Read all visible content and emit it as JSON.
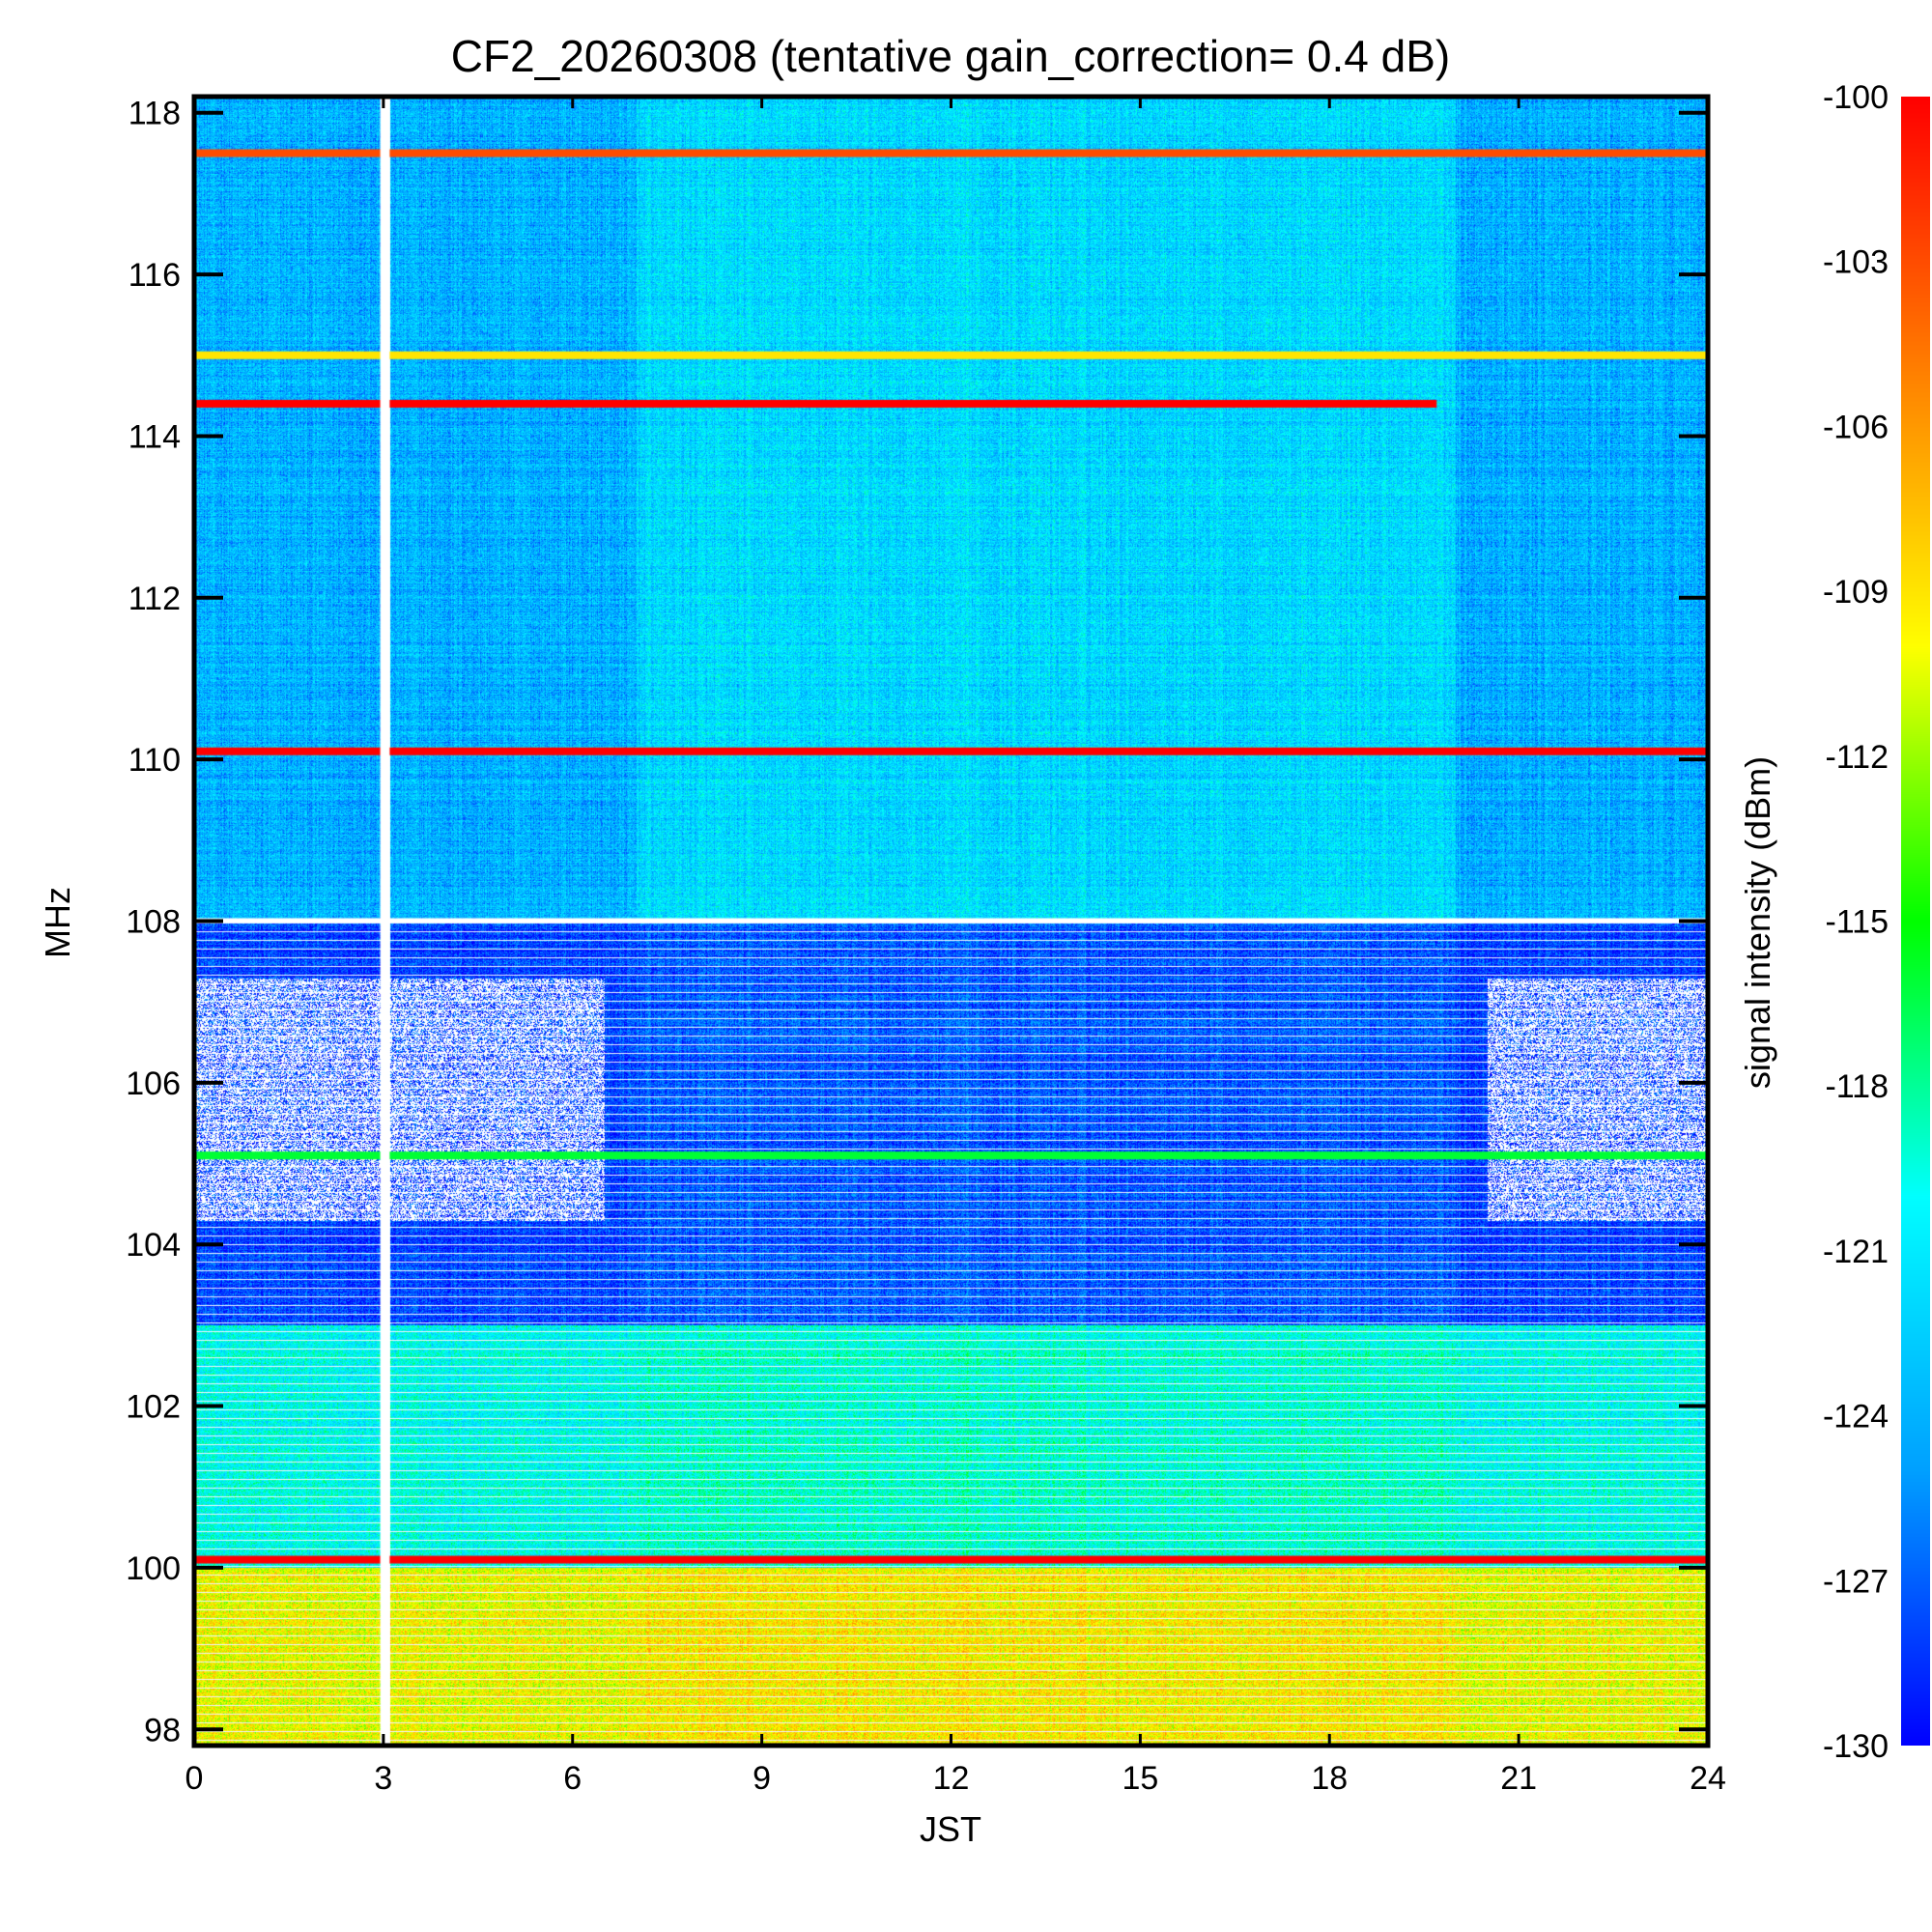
{
  "chart_data": {
    "type": "heatmap",
    "title": "CF2_20260308 (tentative gain_correction=  0.4 dB)",
    "xlabel": "JST",
    "ylabel": "MHz",
    "xlim": [
      0,
      24
    ],
    "ylim": [
      97.8,
      118.2
    ],
    "x_ticks": [
      "0",
      "3",
      "6",
      "9",
      "12",
      "15",
      "18",
      "21",
      "24"
    ],
    "y_ticks": [
      "98",
      "100",
      "102",
      "104",
      "106",
      "108",
      "110",
      "112",
      "114",
      "116",
      "118"
    ],
    "colorbar": {
      "label": "signal intensity (dBm)",
      "range": [
        -130,
        -100
      ],
      "ticks": [
        "-100",
        "-103",
        "-106",
        "-109",
        "-112",
        "-115",
        "-118",
        "-121",
        "-124",
        "-127",
        "-130"
      ],
      "colormap": [
        "#0000ff",
        "#00a0ff",
        "#00ffff",
        "#00ff00",
        "#ffff00",
        "#ff8000",
        "#ff0000"
      ]
    },
    "data_gap": {
      "jst_start": 2.95,
      "jst_end": 3.1,
      "note": "no data"
    },
    "strong_carriers": [
      {
        "mhz": 117.5,
        "dbm": -103,
        "jst_start": 0,
        "jst_end": 24
      },
      {
        "mhz": 115.0,
        "dbm": -109,
        "jst_start": 0,
        "jst_end": 24
      },
      {
        "mhz": 114.4,
        "dbm": -100,
        "jst_start": 0,
        "jst_end": 19.7
      },
      {
        "mhz": 110.1,
        "dbm": -100,
        "jst_start": 0,
        "jst_end": 24
      },
      {
        "mhz": 105.1,
        "dbm": -116,
        "jst_start": 0,
        "jst_end": 24
      },
      {
        "mhz": 100.1,
        "dbm": -100,
        "jst_start": 0,
        "jst_end": 24
      }
    ],
    "background_levels": [
      {
        "mhz_range": [
          108,
          118
        ],
        "dbm_approx": -124
      },
      {
        "mhz_range": [
          103,
          108
        ],
        "dbm_approx": -128
      },
      {
        "mhz_range": [
          100,
          103
        ],
        "dbm_approx": -120
      },
      {
        "mhz_range": [
          97.8,
          100
        ],
        "dbm_approx": -110
      }
    ]
  }
}
